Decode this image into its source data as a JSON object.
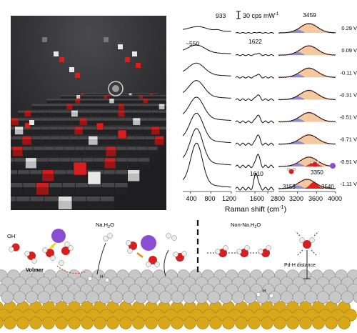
{
  "raman": {
    "scale_bar_label": "30 cps mW",
    "scale_bar_superscript": "-1",
    "x_axis_title": "Raman shift (cm",
    "x_axis_title_sup": "-1",
    "x_axis_title_end": ")",
    "peak_labels": {
      "p933": "933",
      "p3459": "3459",
      "p550": "~550",
      "p1622": "1622",
      "p1610": "1610",
      "p3155": "3155",
      "p3350": "3350",
      "p3540": "3540"
    },
    "potentials": [
      "0.29 V",
      "0.09 V",
      "-0.11 V",
      "-0.31 V",
      "-0.51 V",
      "-0.71 V",
      "-0.91 V",
      "-1.11 V"
    ],
    "tick_labels_panel1": [
      "400",
      "800",
      "1200"
    ],
    "tick_labels_panel2": [
      "1600",
      "2800"
    ],
    "tick_labels_panel3": [
      "3200",
      "3600",
      "4000"
    ]
  },
  "chart_data": {
    "type": "line",
    "xlabel": "Raman shift (cm-1)",
    "series": [
      {
        "name": "0.29 V",
        "peaks_cm-1": [
          933,
          3459
        ]
      },
      {
        "name": "0.09 V",
        "peaks_cm-1": [
          550,
          1622,
          3459
        ]
      },
      {
        "name": "-0.11 V",
        "peaks_cm-1": [
          550,
          1622,
          3459
        ]
      },
      {
        "name": "-0.31 V",
        "peaks_cm-1": [
          550,
          1622,
          3459
        ]
      },
      {
        "name": "-0.51 V",
        "peaks_cm-1": [
          550,
          1622,
          3459
        ]
      },
      {
        "name": "-0.71 V",
        "peaks_cm-1": [
          550,
          1622,
          3459
        ]
      },
      {
        "name": "-0.91 V",
        "peaks_cm-1": [
          550,
          1622,
          3350
        ]
      },
      {
        "name": "-1.11 V",
        "peaks_cm-1": [
          550,
          1610,
          3155,
          3350,
          3540
        ]
      }
    ],
    "x_ranges": [
      [
        250,
        1200
      ],
      [
        1450,
        1750
      ],
      [
        2800,
        4000
      ]
    ]
  },
  "scheme": {
    "left_title": "Na.H",
    "left_title_sub": "2",
    "left_title_end": "O",
    "right_title": "Non-Na.H",
    "right_title_sub": "2",
    "right_title_end": "O",
    "oh_label": "OH",
    "oh_sup": "-",
    "volmer_label": "Volmer",
    "pdh_label": "Pd-H distance",
    "h_label": "H"
  },
  "colors": {
    "red_atom": "#d81f1f",
    "na_atom": "#8a4fd0",
    "pd_atom": "#c8c8c8",
    "au_atom": "#d8a81a",
    "fill_orange": "#f4c9a0",
    "fill_blue": "#7d7fe0",
    "fill_red": "#e02020"
  }
}
